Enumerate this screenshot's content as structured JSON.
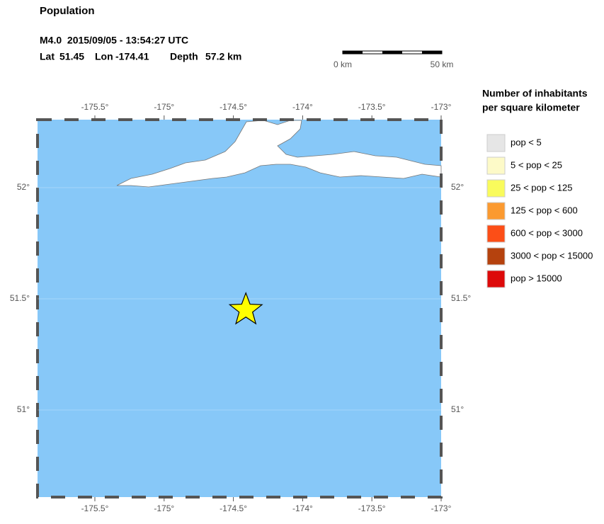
{
  "header": {
    "title": "Population",
    "event": "M4.0  2015/09/05 - 13:54:27 UTC"
  },
  "epicenter": {
    "lat_label": "Lat",
    "lat": 51.45,
    "lon_label": "Lon",
    "lon": -174.41,
    "depth_label": "Depth",
    "depth": "57.2 km"
  },
  "scale_bar": {
    "start": "0 km",
    "end": "50 km"
  },
  "map": {
    "lonlim": [
      -175.914,
      -173
    ],
    "latlim": [
      50.608,
      52.306
    ],
    "lonticks": [
      {
        "value": -175.5,
        "label": "-175.5°"
      },
      {
        "value": -175,
        "label": "-175°"
      },
      {
        "value": -174.5,
        "label": "-174.5°"
      },
      {
        "value": -174,
        "label": "-174°"
      },
      {
        "value": -173.5,
        "label": "-173.5°"
      },
      {
        "value": -173,
        "label": "-173°"
      }
    ],
    "latticks": [
      {
        "value": 52,
        "label": "52°"
      },
      {
        "value": 51.5,
        "label": "51.5°"
      },
      {
        "value": 51,
        "label": "51°"
      }
    ],
    "water_color": "#87c8f8",
    "land_color": "#ffffff"
  },
  "legend": {
    "title": [
      "Number of inhabitants",
      "per square kilometer"
    ],
    "items": [
      {
        "label": "pop < 5",
        "color": "#e6e6e6"
      },
      {
        "label": "5 < pop < 25",
        "color": "#fdfac8"
      },
      {
        "label": "25 < pop < 125",
        "color": "#f9fb5c"
      },
      {
        "label": "125 < pop < 600",
        "color": "#fb9a30"
      },
      {
        "label": "600 < pop < 3000",
        "color": "#fc4e17"
      },
      {
        "label": "3000 < pop < 15000",
        "color": "#b5420e"
      },
      {
        "label": "pop > 15000",
        "color": "#dd0a0a"
      }
    ]
  }
}
